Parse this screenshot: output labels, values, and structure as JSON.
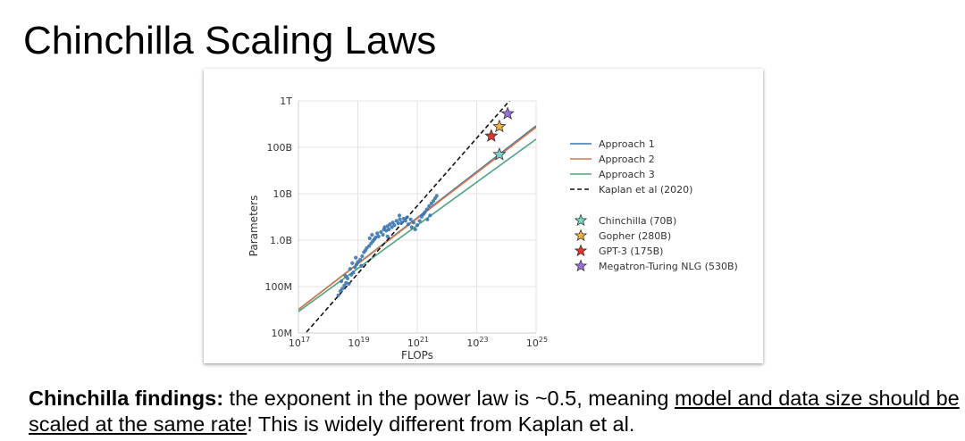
{
  "slide": {
    "title": "Chinchilla Scaling Laws",
    "caption": {
      "lead": "Chinchilla findings:",
      "part1": " the exponent in the power law is ~0.5, meaning ",
      "underlined": "model and data size should be scaled at the same rate",
      "part2": "! This is widely different from Kaplan et al."
    }
  },
  "chart_data": {
    "type": "line",
    "x_scale": "log",
    "y_scale": "log",
    "xlabel": "FLOPs",
    "ylabel": "Parameters",
    "xlim": [
      1e+17,
      1e+25
    ],
    "ylim": [
      10000000.0,
      1000000000000.0
    ],
    "x_ticks": [
      {
        "value": 1e+17,
        "base": "10",
        "exp": "17"
      },
      {
        "value": 1e+19,
        "base": "10",
        "exp": "19"
      },
      {
        "value": 1e+21,
        "base": "10",
        "exp": "21"
      },
      {
        "value": 1e+23,
        "base": "10",
        "exp": "23"
      },
      {
        "value": 1e+25,
        "base": "10",
        "exp": "25"
      }
    ],
    "y_ticks": [
      {
        "value": 10000000.0,
        "label": "10M"
      },
      {
        "value": 100000000.0,
        "label": "100M"
      },
      {
        "value": 1000000000.0,
        "label": "1.0B"
      },
      {
        "value": 10000000000.0,
        "label": "10B"
      },
      {
        "value": 100000000000.0,
        "label": "100B"
      },
      {
        "value": 1000000000000.0,
        "label": "1T"
      }
    ],
    "grid": true,
    "legend_position": "right",
    "series": [
      {
        "name": "Approach 1",
        "color": "#3b75af",
        "dash": "solid",
        "points": [
          [
            1e+17,
            32000000.0
          ],
          [
            1e+25,
            290000000000.0
          ]
        ]
      },
      {
        "name": "Approach 2",
        "color": "#d4784a",
        "dash": "solid",
        "points": [
          [
            1e+17,
            32000000.0
          ],
          [
            1e+25,
            270000000000.0
          ]
        ]
      },
      {
        "name": "Approach 3",
        "color": "#4fa37e",
        "dash": "solid",
        "points": [
          [
            1e+17,
            29000000.0
          ],
          [
            1e+25,
            150000000000.0
          ]
        ]
      },
      {
        "name": "Kaplan et al (2020)",
        "color": "#111111",
        "dash": "dashed",
        "points": [
          [
            1.3e+17,
            8000000.0
          ],
          [
            2e+24,
            1400000000000.0
          ]
        ]
      }
    ],
    "models": [
      {
        "name": "Chinchilla (70B)",
        "flops": 5.8e+23,
        "params": 70000000000.0,
        "color": "#76d7c4"
      },
      {
        "name": "Gopher (280B)",
        "flops": 5.8e+23,
        "params": 280000000000.0,
        "color": "#f0b340"
      },
      {
        "name": "GPT-3 (175B)",
        "flops": 3.1e+23,
        "params": 175000000000.0,
        "color": "#e8322c"
      },
      {
        "name": "Megatron-Turing NLG (530B)",
        "flops": 1.1e+24,
        "params": 530000000000.0,
        "color": "#9b6fe0"
      }
    ],
    "runs": {
      "color": "#3b75af",
      "points": [
        [
          2.2e+18,
          65000000.0
        ],
        [
          2.6e+18,
          80000000.0
        ],
        [
          3e+18,
          90000000.0
        ],
        [
          3.5e+18,
          105000000.0
        ],
        [
          4e+18,
          120000000.0
        ],
        [
          2.8e+18,
          130000000.0
        ],
        [
          4.5e+18,
          150000000.0
        ],
        [
          5e+18,
          115000000.0
        ],
        [
          6e+18,
          180000000.0
        ],
        [
          7e+18,
          200000000.0
        ],
        [
          5.5e+18,
          240000000.0
        ],
        [
          8e+18,
          260000000.0
        ],
        [
          9e+18,
          300000000.0
        ],
        [
          1e+19,
          340000000.0
        ],
        [
          8.5e+18,
          420000000.0
        ],
        [
          1.2e+19,
          380000000.0
        ],
        [
          1.4e+19,
          450000000.0
        ],
        [
          1.6e+19,
          550000000.0
        ],
        [
          1.8e+19,
          600000000.0
        ],
        [
          2e+19,
          680000000.0
        ],
        [
          2.4e+19,
          750000000.0
        ],
        [
          2.8e+19,
          850000000.0
        ],
        [
          3.2e+19,
          950000000.0
        ],
        [
          3.6e+19,
          1050000000.0
        ],
        [
          4e+19,
          1150000000.0
        ],
        [
          3e+19,
          1300000000.0
        ],
        [
          4.5e+19,
          1400000000.0
        ],
        [
          5e+19,
          1200000000.0
        ],
        [
          6e+19,
          1500000000.0
        ],
        [
          7e+19,
          1300000000.0
        ],
        [
          7.5e+19,
          1700000000.0
        ],
        [
          8e+19,
          1900000000.0
        ],
        [
          9e+19,
          1600000000.0
        ],
        [
          1e+20,
          2000000000.0
        ],
        [
          1.1e+20,
          1700000000.0
        ],
        [
          1.2e+20,
          2200000000.0
        ],
        [
          1.4e+20,
          1900000000.0
        ],
        [
          1.5e+20,
          2400000000.0
        ],
        [
          1.7e+20,
          2100000000.0
        ],
        [
          2e+20,
          2600000000.0
        ],
        [
          2.3e+20,
          2300000000.0
        ],
        [
          2.6e+20,
          2800000000.0
        ],
        [
          3e+20,
          2400000000.0
        ],
        [
          3.5e+20,
          2900000000.0
        ],
        [
          4e+20,
          2600000000.0
        ],
        [
          4.5e+20,
          3100000000.0
        ],
        [
          5e+20,
          2200000000.0
        ],
        [
          6e+20,
          2800000000.0
        ],
        [
          6.5e+20,
          1900000000.0
        ],
        [
          7.5e+20,
          2400000000.0
        ],
        [
          8.5e+20,
          1700000000.0
        ],
        [
          1e+21,
          2100000000.0
        ],
        [
          1.2e+21,
          2600000000.0
        ],
        [
          1.4e+21,
          3200000000.0
        ],
        [
          1.6e+21,
          3600000000.0
        ],
        [
          1.8e+21,
          4000000000.0
        ],
        [
          2.1e+21,
          4600000000.0
        ],
        [
          2.5e+21,
          5400000000.0
        ],
        [
          3e+21,
          6200000000.0
        ],
        [
          3.5e+21,
          7000000000.0
        ],
        [
          4e+21,
          8000000000.0
        ],
        [
          2.2e+21,
          2800000000.0
        ],
        [
          2.7e+21,
          3400000000.0
        ],
        [
          4.5e+21,
          9000000000.0
        ],
        [
          1e+20,
          1200000000.0
        ],
        [
          2.5e+19,
          1100000000.0
        ],
        [
          1.3e+19,
          280000000.0
        ],
        [
          6.5e+18,
          320000000.0
        ],
        [
          3.8e+18,
          170000000.0
        ],
        [
          2.5e+20,
          3400000000.0
        ]
      ]
    }
  }
}
